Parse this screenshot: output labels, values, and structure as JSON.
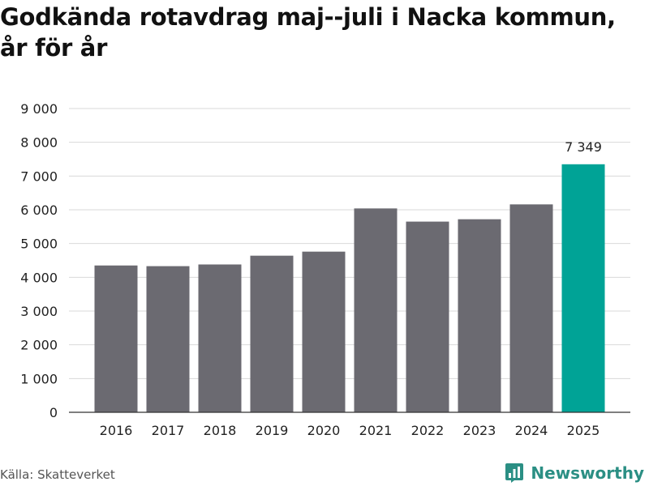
{
  "title_line1": "Godkända rotavdrag maj--juli i Nacka kommun,",
  "title_line2": "år för år",
  "source": "Källa: Skatteverket",
  "brand": {
    "name": "Newsworthy",
    "color": "#2b8f84",
    "icon": "newsworthy-logo-icon"
  },
  "colors": {
    "bar": "#6b6a71",
    "highlight": "#00a396",
    "grid": "#d9d9d9",
    "axis": "#333333"
  },
  "chart_data": {
    "type": "bar",
    "categories": [
      "2016",
      "2017",
      "2018",
      "2019",
      "2020",
      "2021",
      "2022",
      "2023",
      "2024",
      "2025"
    ],
    "values": [
      4350,
      4330,
      4380,
      4640,
      4760,
      6040,
      5650,
      5720,
      6160,
      7349
    ],
    "highlight_index": 9,
    "data_labels": [
      null,
      null,
      null,
      null,
      null,
      null,
      null,
      null,
      null,
      "7 349"
    ],
    "yticks": [
      0,
      1000,
      2000,
      3000,
      4000,
      5000,
      6000,
      7000,
      8000,
      9000
    ],
    "ytick_labels": [
      "0",
      "1 000",
      "2 000",
      "3 000",
      "4 000",
      "5 000",
      "6 000",
      "7 000",
      "8 000",
      "9 000"
    ],
    "ylim": [
      0,
      9000
    ],
    "grid": true,
    "legend": "none"
  }
}
